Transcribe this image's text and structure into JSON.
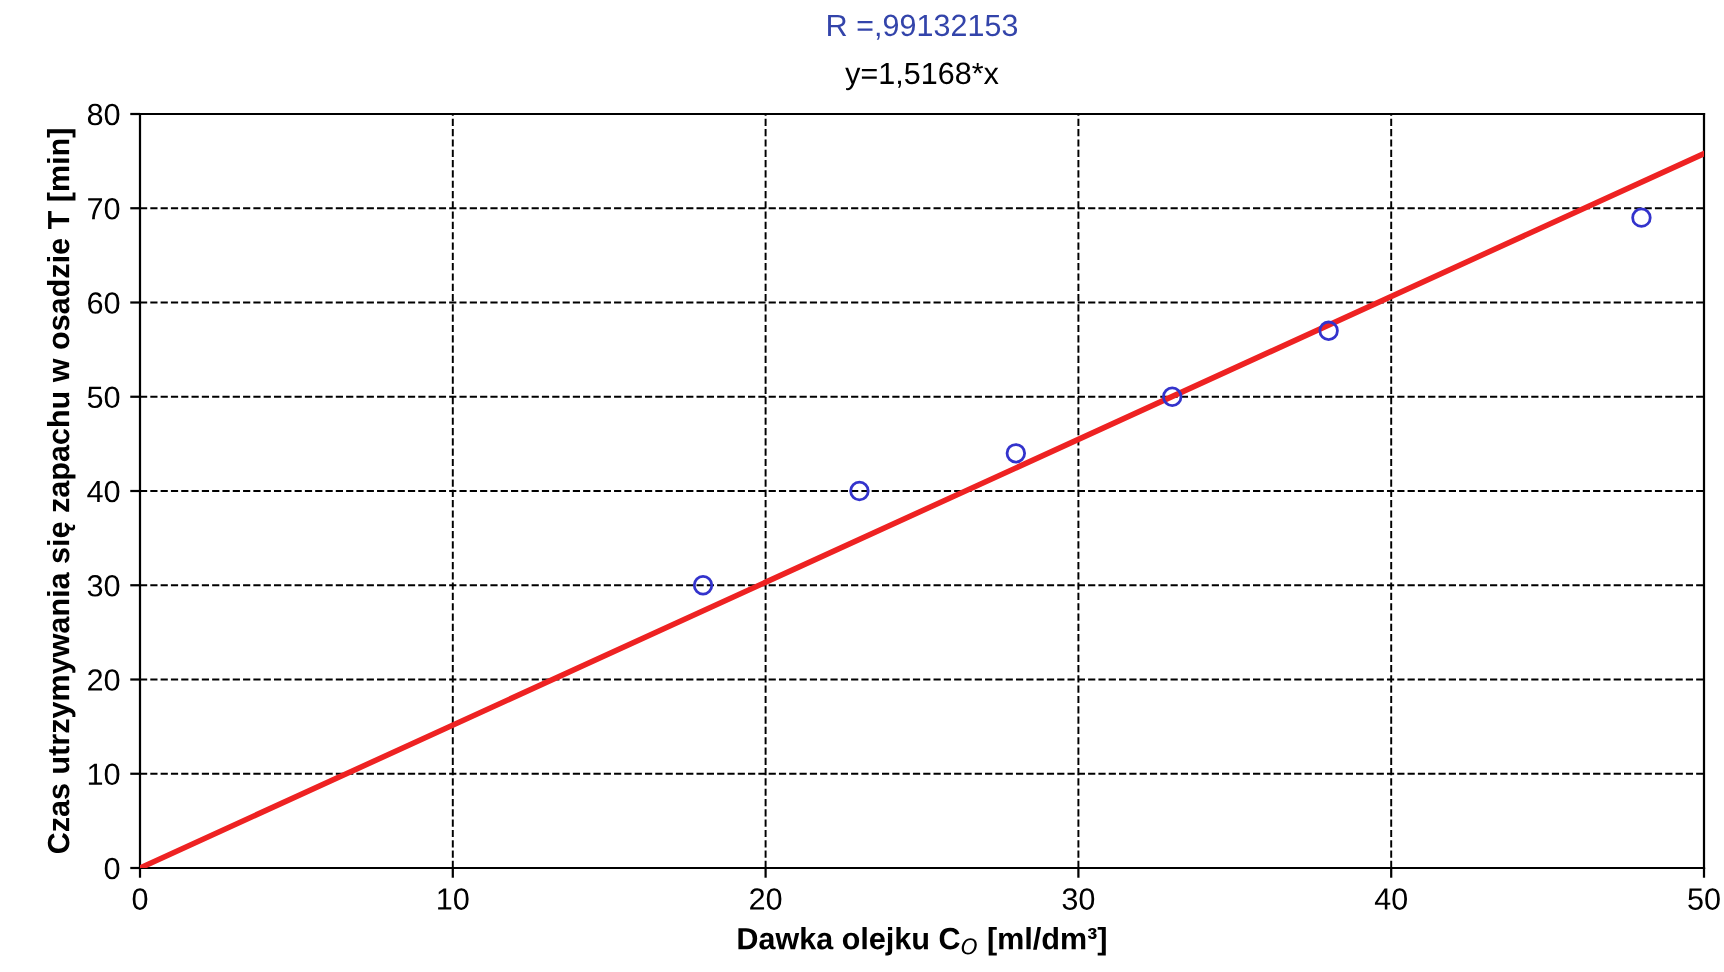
{
  "chart_data": {
    "type": "scatter",
    "title": "R =,99132153",
    "subtitle": "y=1,5168*x",
    "xlabel": "Dawka olejku C$_{O}$ [ml/dm³]",
    "ylabel": "Czas utrzymywania się zapachu w osadzie T [min]",
    "series": [
      {
        "color": "#3333cc",
        "marker": "circle",
        "x": [
          18,
          23,
          28,
          33,
          38,
          48
        ],
        "values": [
          30,
          40,
          44,
          50,
          57,
          69
        ]
      },
      {
        "type": "line",
        "color": "#ee2222",
        "marker": "none",
        "line_style": "solid",
        "x": [
          0,
          50
        ],
        "values": [
          0,
          75.8
        ]
      }
    ],
    "xlim": [
      0,
      50
    ],
    "xticks": [
      0,
      10,
      20,
      30,
      40,
      50
    ],
    "ylim": [
      0,
      80
    ],
    "yticks": [
      0,
      10,
      20,
      30,
      40,
      50,
      60,
      70,
      80
    ],
    "grid": true,
    "legend": false
  }
}
